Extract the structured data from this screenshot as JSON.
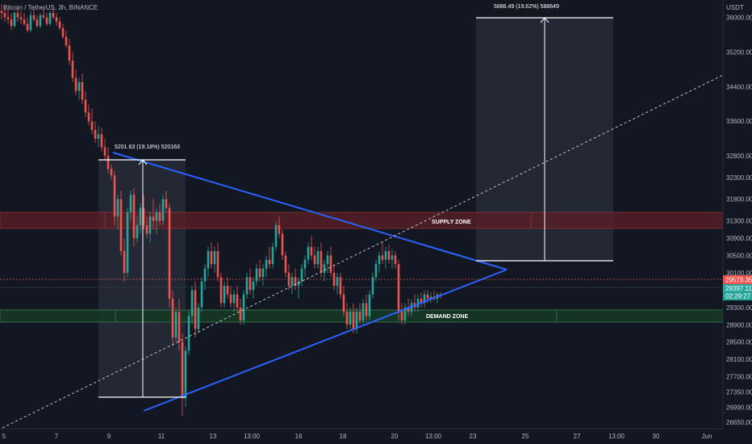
{
  "header": {
    "symbol_title": "Bitcoin / TetherUS, 3h, BINANCE",
    "currency": "USDT"
  },
  "price_badges": {
    "current_price": "29573.35",
    "bid_price": "29397.11",
    "countdown": "02:29:27"
  },
  "annotations": {
    "supply_label": "SUPPLY ZONE",
    "demand_label": "DEMAND ZONE",
    "left_measure": "5201.63 (19.18%) 520163",
    "right_measure": "5886.49 (19.62%) 588649"
  },
  "colors": {
    "background": "#131722",
    "up": "#26a69a",
    "down": "#ef5350",
    "trendline": "#2962ff",
    "supply_fill": "#5c1f24",
    "demand_fill": "#163824"
  },
  "chart_data": {
    "type": "candlestick",
    "xlabel": "",
    "ylabel": "",
    "x_ticks": [
      "5",
      "7",
      "9",
      "11",
      "13",
      "13:00",
      "16",
      "18",
      "20",
      "13:00",
      "23",
      "25",
      "27",
      "13:00",
      "30",
      "Jun"
    ],
    "y_ticks": [
      26650.0,
      26990.0,
      27350.0,
      27700.0,
      28100.0,
      28500.0,
      28900.0,
      29300.0,
      30100.0,
      30500.0,
      30900.0,
      31300.0,
      31800.0,
      32300.0,
      32800.0,
      33600.0,
      34400.0,
      35200.0,
      36000.0
    ],
    "ylim": [
      26500,
      36400
    ],
    "supply_zone": [
      30750,
      31100
    ],
    "demand_zone": [
      28800,
      29000
    ],
    "current_price": 29573.35,
    "bid_price": 29397.11,
    "candles": [
      {
        "x": 2,
        "o": 36150,
        "h": 36300,
        "l": 35950,
        "c": 36100
      },
      {
        "x": 6,
        "o": 36100,
        "h": 36250,
        "l": 35900,
        "c": 36000
      },
      {
        "x": 10,
        "o": 36000,
        "h": 36200,
        "l": 35850,
        "c": 35950
      },
      {
        "x": 14,
        "o": 35950,
        "h": 36100,
        "l": 35700,
        "c": 35800
      },
      {
        "x": 18,
        "o": 35800,
        "h": 36150,
        "l": 35750,
        "c": 36100
      },
      {
        "x": 22,
        "o": 36100,
        "h": 36200,
        "l": 35900,
        "c": 36000
      },
      {
        "x": 26,
        "o": 36000,
        "h": 36150,
        "l": 35850,
        "c": 35950
      },
      {
        "x": 30,
        "o": 35950,
        "h": 36100,
        "l": 35800,
        "c": 35850
      },
      {
        "x": 34,
        "o": 35850,
        "h": 36000,
        "l": 35650,
        "c": 35700
      },
      {
        "x": 38,
        "o": 35700,
        "h": 36150,
        "l": 35650,
        "c": 36050
      },
      {
        "x": 42,
        "o": 36050,
        "h": 36200,
        "l": 35900,
        "c": 35950
      },
      {
        "x": 46,
        "o": 35950,
        "h": 36050,
        "l": 35750,
        "c": 35800
      },
      {
        "x": 50,
        "o": 35800,
        "h": 36100,
        "l": 35750,
        "c": 36050
      },
      {
        "x": 54,
        "o": 36050,
        "h": 36200,
        "l": 35950,
        "c": 36000
      },
      {
        "x": 58,
        "o": 36000,
        "h": 36100,
        "l": 35800,
        "c": 35850
      },
      {
        "x": 62,
        "o": 35850,
        "h": 36150,
        "l": 35800,
        "c": 36100
      },
      {
        "x": 66,
        "o": 36100,
        "h": 36200,
        "l": 35950,
        "c": 36000
      },
      {
        "x": 70,
        "o": 36000,
        "h": 36100,
        "l": 35800,
        "c": 35900
      },
      {
        "x": 74,
        "o": 35900,
        "h": 36000,
        "l": 35700,
        "c": 35750
      },
      {
        "x": 78,
        "o": 35750,
        "h": 35850,
        "l": 35500,
        "c": 35550
      },
      {
        "x": 82,
        "o": 35550,
        "h": 35700,
        "l": 35300,
        "c": 35350
      },
      {
        "x": 86,
        "o": 35350,
        "h": 35500,
        "l": 34900,
        "c": 35000
      },
      {
        "x": 90,
        "o": 35000,
        "h": 35200,
        "l": 34500,
        "c": 34600
      },
      {
        "x": 94,
        "o": 34600,
        "h": 34800,
        "l": 34200,
        "c": 34300
      },
      {
        "x": 98,
        "o": 34300,
        "h": 34600,
        "l": 34100,
        "c": 34500
      },
      {
        "x": 102,
        "o": 34500,
        "h": 34700,
        "l": 34000,
        "c": 34100
      },
      {
        "x": 106,
        "o": 34100,
        "h": 34300,
        "l": 33700,
        "c": 33800
      },
      {
        "x": 110,
        "o": 33800,
        "h": 34000,
        "l": 33500,
        "c": 33600
      },
      {
        "x": 114,
        "o": 33600,
        "h": 33900,
        "l": 33300,
        "c": 33400
      },
      {
        "x": 118,
        "o": 33400,
        "h": 33600,
        "l": 33100,
        "c": 33200
      },
      {
        "x": 122,
        "o": 33200,
        "h": 33500,
        "l": 33000,
        "c": 33300
      },
      {
        "x": 126,
        "o": 33300,
        "h": 33450,
        "l": 32900,
        "c": 33000
      },
      {
        "x": 130,
        "o": 33000,
        "h": 33200,
        "l": 32700,
        "c": 32800
      },
      {
        "x": 134,
        "o": 32800,
        "h": 33000,
        "l": 32400,
        "c": 32500
      },
      {
        "x": 138,
        "o": 32500,
        "h": 32600,
        "l": 32250,
        "c": 32350
      },
      {
        "x": 142,
        "o": 32350,
        "h": 32450,
        "l": 31200,
        "c": 31400
      },
      {
        "x": 146,
        "o": 31400,
        "h": 31900,
        "l": 31100,
        "c": 31800
      },
      {
        "x": 150,
        "o": 31800,
        "h": 32000,
        "l": 30500,
        "c": 30600
      },
      {
        "x": 154,
        "o": 30600,
        "h": 30900,
        "l": 29900,
        "c": 30100
      },
      {
        "x": 158,
        "o": 30100,
        "h": 31600,
        "l": 30000,
        "c": 31500
      },
      {
        "x": 162,
        "o": 31500,
        "h": 32000,
        "l": 31300,
        "c": 31900
      },
      {
        "x": 166,
        "o": 31900,
        "h": 32050,
        "l": 30700,
        "c": 30900
      },
      {
        "x": 170,
        "o": 30900,
        "h": 31400,
        "l": 30800,
        "c": 31200
      },
      {
        "x": 174,
        "o": 31200,
        "h": 31700,
        "l": 31000,
        "c": 31600
      },
      {
        "x": 178,
        "o": 31600,
        "h": 31900,
        "l": 31100,
        "c": 31200
      },
      {
        "x": 182,
        "o": 31200,
        "h": 31400,
        "l": 30900,
        "c": 31000
      },
      {
        "x": 186,
        "o": 31000,
        "h": 31500,
        "l": 30800,
        "c": 31400
      },
      {
        "x": 190,
        "o": 31400,
        "h": 31800,
        "l": 31100,
        "c": 31300
      },
      {
        "x": 194,
        "o": 31300,
        "h": 31600,
        "l": 31000,
        "c": 31500
      },
      {
        "x": 198,
        "o": 31500,
        "h": 31700,
        "l": 31200,
        "c": 31300
      },
      {
        "x": 202,
        "o": 31300,
        "h": 31900,
        "l": 31200,
        "c": 31800
      },
      {
        "x": 206,
        "o": 31800,
        "h": 32000,
        "l": 31500,
        "c": 31600
      },
      {
        "x": 210,
        "o": 31600,
        "h": 31700,
        "l": 29300,
        "c": 29500
      },
      {
        "x": 214,
        "o": 29500,
        "h": 29700,
        "l": 28400,
        "c": 28600
      },
      {
        "x": 218,
        "o": 28600,
        "h": 29300,
        "l": 28500,
        "c": 29200
      },
      {
        "x": 222,
        "o": 29200,
        "h": 29500,
        "l": 28300,
        "c": 28500
      },
      {
        "x": 226,
        "o": 28500,
        "h": 28700,
        "l": 26800,
        "c": 27200
      },
      {
        "x": 230,
        "o": 27200,
        "h": 28400,
        "l": 27000,
        "c": 28300
      },
      {
        "x": 234,
        "o": 28300,
        "h": 29200,
        "l": 28200,
        "c": 29100
      },
      {
        "x": 238,
        "o": 29100,
        "h": 29800,
        "l": 28900,
        "c": 29700
      },
      {
        "x": 242,
        "o": 29700,
        "h": 29900,
        "l": 28600,
        "c": 28800
      },
      {
        "x": 246,
        "o": 28800,
        "h": 29400,
        "l": 28700,
        "c": 29300
      },
      {
        "x": 250,
        "o": 29300,
        "h": 30000,
        "l": 29200,
        "c": 29900
      },
      {
        "x": 254,
        "o": 29900,
        "h": 30300,
        "l": 29700,
        "c": 30200
      },
      {
        "x": 258,
        "o": 30200,
        "h": 30700,
        "l": 30000,
        "c": 30600
      },
      {
        "x": 262,
        "o": 30600,
        "h": 30800,
        "l": 30200,
        "c": 30300
      },
      {
        "x": 266,
        "o": 30300,
        "h": 30700,
        "l": 30100,
        "c": 30600
      },
      {
        "x": 270,
        "o": 30600,
        "h": 30800,
        "l": 29900,
        "c": 30000
      },
      {
        "x": 274,
        "o": 30000,
        "h": 30100,
        "l": 29300,
        "c": 29400
      },
      {
        "x": 278,
        "o": 29400,
        "h": 29900,
        "l": 29300,
        "c": 29800
      },
      {
        "x": 282,
        "o": 29800,
        "h": 30000,
        "l": 29500,
        "c": 29600
      },
      {
        "x": 286,
        "o": 29600,
        "h": 29800,
        "l": 29300,
        "c": 29400
      },
      {
        "x": 290,
        "o": 29400,
        "h": 29700,
        "l": 29200,
        "c": 29600
      },
      {
        "x": 294,
        "o": 29600,
        "h": 29800,
        "l": 29200,
        "c": 29300
      },
      {
        "x": 298,
        "o": 29300,
        "h": 29500,
        "l": 28900,
        "c": 29000
      },
      {
        "x": 302,
        "o": 29000,
        "h": 29700,
        "l": 28900,
        "c": 29600
      },
      {
        "x": 306,
        "o": 29600,
        "h": 30100,
        "l": 29500,
        "c": 30000
      },
      {
        "x": 310,
        "o": 30000,
        "h": 30200,
        "l": 29600,
        "c": 29700
      },
      {
        "x": 314,
        "o": 29700,
        "h": 30000,
        "l": 29500,
        "c": 29900
      },
      {
        "x": 318,
        "o": 29900,
        "h": 30300,
        "l": 29800,
        "c": 30200
      },
      {
        "x": 322,
        "o": 30200,
        "h": 30400,
        "l": 29900,
        "c": 30000
      },
      {
        "x": 326,
        "o": 30000,
        "h": 30300,
        "l": 29800,
        "c": 30200
      },
      {
        "x": 330,
        "o": 30200,
        "h": 30500,
        "l": 30000,
        "c": 30400
      },
      {
        "x": 334,
        "o": 30400,
        "h": 30700,
        "l": 30200,
        "c": 30300
      },
      {
        "x": 338,
        "o": 30300,
        "h": 30800,
        "l": 30200,
        "c": 30700
      },
      {
        "x": 342,
        "o": 30700,
        "h": 31300,
        "l": 30600,
        "c": 31200
      },
      {
        "x": 346,
        "o": 31200,
        "h": 31400,
        "l": 30900,
        "c": 31000
      },
      {
        "x": 350,
        "o": 31000,
        "h": 31100,
        "l": 30400,
        "c": 30500
      },
      {
        "x": 354,
        "o": 30500,
        "h": 30600,
        "l": 30000,
        "c": 30100
      },
      {
        "x": 358,
        "o": 30100,
        "h": 30300,
        "l": 29700,
        "c": 29800
      },
      {
        "x": 362,
        "o": 29800,
        "h": 30100,
        "l": 29600,
        "c": 30000
      },
      {
        "x": 366,
        "o": 30000,
        "h": 30200,
        "l": 29700,
        "c": 29800
      },
      {
        "x": 370,
        "o": 29800,
        "h": 30000,
        "l": 29500,
        "c": 29900
      },
      {
        "x": 374,
        "o": 29900,
        "h": 30300,
        "l": 29800,
        "c": 30200
      },
      {
        "x": 378,
        "o": 30200,
        "h": 30500,
        "l": 30000,
        "c": 30400
      },
      {
        "x": 382,
        "o": 30400,
        "h": 30800,
        "l": 30300,
        "c": 30700
      },
      {
        "x": 386,
        "o": 30700,
        "h": 30950,
        "l": 30400,
        "c": 30500
      },
      {
        "x": 390,
        "o": 30500,
        "h": 30700,
        "l": 30200,
        "c": 30300
      },
      {
        "x": 394,
        "o": 30300,
        "h": 30700,
        "l": 30200,
        "c": 30600
      },
      {
        "x": 398,
        "o": 30600,
        "h": 30800,
        "l": 30000,
        "c": 30100
      },
      {
        "x": 402,
        "o": 30100,
        "h": 30400,
        "l": 29900,
        "c": 30300
      },
      {
        "x": 406,
        "o": 30300,
        "h": 30600,
        "l": 30100,
        "c": 30500
      },
      {
        "x": 410,
        "o": 30500,
        "h": 30700,
        "l": 30000,
        "c": 30100
      },
      {
        "x": 414,
        "o": 30100,
        "h": 30300,
        "l": 29700,
        "c": 29800
      },
      {
        "x": 418,
        "o": 29800,
        "h": 30100,
        "l": 29600,
        "c": 30000
      },
      {
        "x": 422,
        "o": 30000,
        "h": 30100,
        "l": 29500,
        "c": 29600
      },
      {
        "x": 426,
        "o": 29600,
        "h": 29800,
        "l": 29100,
        "c": 29200
      },
      {
        "x": 430,
        "o": 29200,
        "h": 29400,
        "l": 28800,
        "c": 28900
      },
      {
        "x": 434,
        "o": 28900,
        "h": 29300,
        "l": 28800,
        "c": 29200
      },
      {
        "x": 438,
        "o": 29200,
        "h": 29400,
        "l": 28700,
        "c": 28800
      },
      {
        "x": 442,
        "o": 28800,
        "h": 29300,
        "l": 28700,
        "c": 29200
      },
      {
        "x": 446,
        "o": 29200,
        "h": 29400,
        "l": 28900,
        "c": 29000
      },
      {
        "x": 450,
        "o": 29000,
        "h": 29500,
        "l": 28900,
        "c": 29400
      },
      {
        "x": 454,
        "o": 29400,
        "h": 29600,
        "l": 29000,
        "c": 29100
      },
      {
        "x": 458,
        "o": 29100,
        "h": 29700,
        "l": 29000,
        "c": 29600
      },
      {
        "x": 462,
        "o": 29600,
        "h": 30100,
        "l": 29500,
        "c": 30000
      },
      {
        "x": 466,
        "o": 30000,
        "h": 30400,
        "l": 29900,
        "c": 30300
      },
      {
        "x": 470,
        "o": 30300,
        "h": 30600,
        "l": 30100,
        "c": 30500
      },
      {
        "x": 474,
        "o": 30500,
        "h": 30800,
        "l": 30300,
        "c": 30400
      },
      {
        "x": 478,
        "o": 30400,
        "h": 30700,
        "l": 30200,
        "c": 30600
      },
      {
        "x": 482,
        "o": 30600,
        "h": 30750,
        "l": 30300,
        "c": 30400
      },
      {
        "x": 486,
        "o": 30400,
        "h": 30650,
        "l": 30200,
        "c": 30500
      },
      {
        "x": 490,
        "o": 30500,
        "h": 30600,
        "l": 30200,
        "c": 30300
      },
      {
        "x": 494,
        "o": 30300,
        "h": 30400,
        "l": 29000,
        "c": 29200
      },
      {
        "x": 498,
        "o": 29200,
        "h": 29400,
        "l": 28900,
        "c": 29000
      },
      {
        "x": 502,
        "o": 29000,
        "h": 29400,
        "l": 28900,
        "c": 29300
      },
      {
        "x": 506,
        "o": 29300,
        "h": 29500,
        "l": 29100,
        "c": 29200
      },
      {
        "x": 510,
        "o": 29200,
        "h": 29500,
        "l": 29100,
        "c": 29400
      },
      {
        "x": 514,
        "o": 29400,
        "h": 29600,
        "l": 29200,
        "c": 29300
      },
      {
        "x": 518,
        "o": 29300,
        "h": 29600,
        "l": 29200,
        "c": 29500
      },
      {
        "x": 522,
        "o": 29500,
        "h": 29650,
        "l": 29300,
        "c": 29400
      },
      {
        "x": 526,
        "o": 29400,
        "h": 29700,
        "l": 29300,
        "c": 29600
      },
      {
        "x": 530,
        "o": 29600,
        "h": 29700,
        "l": 29400,
        "c": 29500
      },
      {
        "x": 534,
        "o": 29500,
        "h": 29650,
        "l": 29400,
        "c": 29550
      },
      {
        "x": 538,
        "o": 29550,
        "h": 29700,
        "l": 29450,
        "c": 29500
      },
      {
        "x": 542,
        "o": 29500,
        "h": 29650,
        "l": 29400,
        "c": 29600
      },
      {
        "x": 546,
        "o": 29600,
        "h": 29650,
        "l": 29500,
        "c": 29573
      }
    ]
  }
}
